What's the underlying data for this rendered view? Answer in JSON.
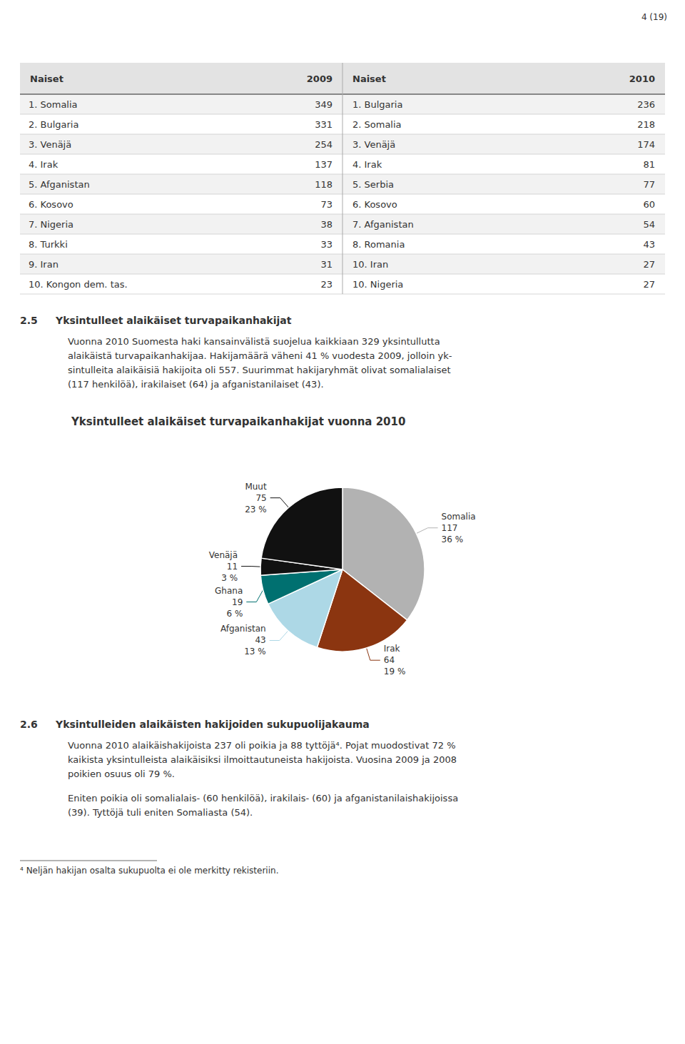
{
  "page_number": "4 (19)",
  "chart_data": [
    {
      "type": "table",
      "columns": [
        "Naiset",
        "2009",
        "Naiset",
        "2010"
      ],
      "rows": [
        [
          "1. Somalia",
          349,
          "1. Bulgaria",
          236
        ],
        [
          "2. Bulgaria",
          331,
          "2. Somalia",
          218
        ],
        [
          "3. Venäjä",
          254,
          "3. Venäjä",
          174
        ],
        [
          "4. Irak",
          137,
          "4. Irak",
          81
        ],
        [
          "5. Afganistan",
          118,
          "5. Serbia",
          77
        ],
        [
          "6. Kosovo",
          73,
          "6. Kosovo",
          60
        ],
        [
          "7. Nigeria",
          38,
          "7. Afganistan",
          54
        ],
        [
          "8. Turkki",
          33,
          "8. Romania",
          43
        ],
        [
          "9. Iran",
          31,
          "10. Iran",
          27
        ],
        [
          "10. Kongon dem. tas.",
          23,
          "10. Nigeria",
          27
        ]
      ]
    },
    {
      "type": "pie",
      "title": "Yksintulleet alaikäiset turvapaikanhakijat vuonna 2010",
      "categories": [
        "Somalia",
        "Irak",
        "Afganistan",
        "Ghana",
        "Venäjä",
        "Muut"
      ],
      "values": [
        117,
        64,
        43,
        19,
        11,
        75
      ],
      "percentages": [
        36,
        19,
        13,
        6,
        3,
        23
      ],
      "percentage_labels": [
        "36 %",
        "19 %",
        "13 %",
        "6 %",
        "3 %",
        "23 %"
      ],
      "colors": [
        "#b2b2b2",
        "#8b3510",
        "#add8e6",
        "#007070",
        "#111111",
        "#111111"
      ],
      "data_labels": true
    }
  ],
  "sections": [
    {
      "number": "2.5",
      "heading": "Yksintulleet alaikäiset turvapaikanhakijat",
      "paragraphs": [
        [
          "Vuonna 2010 Suomesta haki kansainvälistä suojelua kaikkiaan 329 yksintullutta",
          "alaikäistä turvapaikanhakijaa. Hakijamäärä väheni 41 % vuodesta 2009, jolloin yk-",
          "sintulleita alaikäisiä hakijoita oli 557. Suurimmat hakijaryhmät olivat somalialaiset",
          "(117 henkilöä), irakilaiset (64) ja afganistanilaiset (43)."
        ]
      ]
    },
    {
      "number": "2.6",
      "heading": "Yksintulleiden alaikäisten hakijoiden sukupuolijakauma",
      "paragraphs": [
        [
          "Vuonna 2010 alaikäishakijoista 237 oli poikia ja 88 tyttöjä⁴. Pojat muodostivat 72 %",
          "kaikista yksintulleista alaikäisiksi ilmoittautuneista hakijoista. Vuosina 2009 ja 2008",
          "poikien osuus oli 79 %."
        ],
        [
          "Eniten poikia oli somalialais- (60 henkilöä), irakilais- (60) ja afganistanilaishakijoissa",
          "(39). Tyttöjä tuli eniten Somaliasta (54)."
        ]
      ]
    }
  ],
  "footnote": "⁴ Neljän hakijan osalta sukupuolta ei ole merkitty rekisteriin."
}
